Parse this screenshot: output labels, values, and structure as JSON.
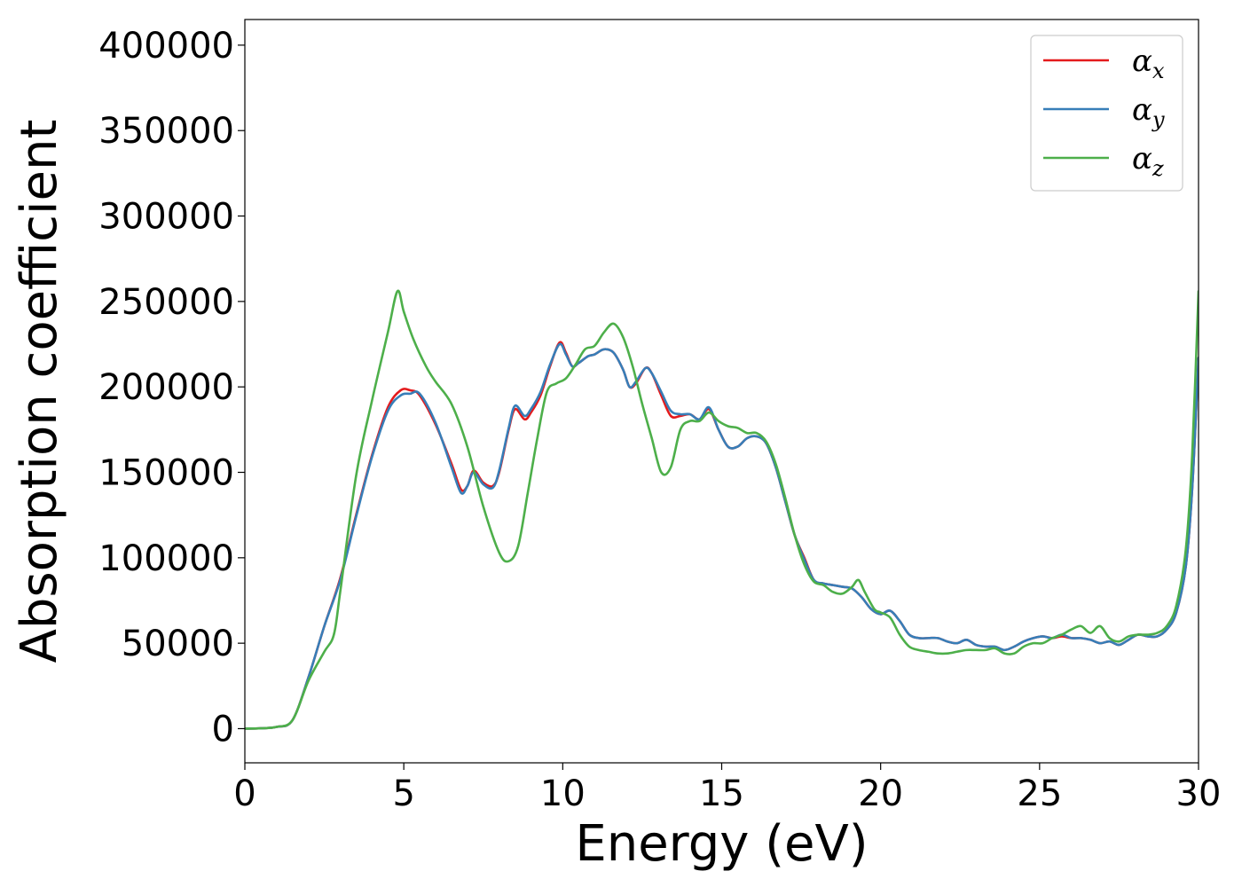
{
  "chart_data": {
    "type": "line",
    "title": "",
    "xlabel": "Energy (eV)",
    "ylabel": "Absorption coefficient",
    "xlim": [
      0,
      30
    ],
    "ylim": [
      -20000,
      415000
    ],
    "xticks": [
      0,
      5,
      10,
      15,
      20,
      25,
      30
    ],
    "xtick_labels": [
      "0",
      "5",
      "10",
      "15",
      "20",
      "25",
      "30"
    ],
    "yticks": [
      0,
      50000,
      100000,
      150000,
      200000,
      250000,
      300000,
      350000,
      400000
    ],
    "ytick_labels": [
      "0",
      "50000",
      "100000",
      "150000",
      "200000",
      "250000",
      "300000",
      "350000",
      "400000"
    ],
    "grid": false,
    "legend_position": "top-right",
    "series": [
      {
        "name": "α_x",
        "label_main": "α",
        "label_sub": "x",
        "color": "#e41a1c",
        "x": [
          0,
          0.5,
          1.0,
          1.5,
          2.0,
          2.5,
          3.0,
          3.5,
          4.0,
          4.5,
          4.9,
          5.2,
          5.5,
          6.0,
          6.5,
          6.8,
          7.0,
          7.2,
          7.5,
          7.8,
          8.0,
          8.3,
          8.5,
          8.8,
          9.0,
          9.3,
          9.6,
          9.9,
          10.1,
          10.3,
          10.5,
          10.8,
          11.0,
          11.3,
          11.6,
          11.9,
          12.1,
          12.3,
          12.6,
          12.8,
          13.1,
          13.4,
          13.7,
          14.0,
          14.3,
          14.6,
          14.9,
          15.2,
          15.5,
          15.8,
          16.1,
          16.4,
          16.7,
          17.0,
          17.3,
          17.6,
          17.9,
          18.2,
          18.5,
          18.8,
          19.1,
          19.4,
          19.7,
          20.0,
          20.3,
          20.6,
          20.9,
          21.2,
          21.5,
          21.8,
          22.1,
          22.4,
          22.7,
          23.0,
          23.3,
          23.6,
          23.9,
          24.2,
          24.5,
          24.8,
          25.1,
          25.4,
          25.7,
          26.0,
          26.3,
          26.6,
          26.9,
          27.2,
          27.5,
          27.8,
          28.1,
          28.4,
          28.7,
          29.0,
          29.3,
          29.6,
          29.8,
          30.0
        ],
        "y": [
          0,
          200,
          1000,
          5000,
          30000,
          60000,
          88000,
          125000,
          160000,
          188000,
          198000,
          198000,
          195000,
          178000,
          155000,
          140000,
          142000,
          151000,
          144000,
          142000,
          150000,
          175000,
          187000,
          181000,
          185000,
          195000,
          212000,
          226000,
          220000,
          212000,
          214000,
          218000,
          219000,
          222000,
          220000,
          210000,
          200000,
          202000,
          211000,
          208000,
          195000,
          183000,
          183000,
          184000,
          181000,
          187000,
          175000,
          165000,
          165000,
          170000,
          171000,
          167000,
          153000,
          133000,
          113000,
          100000,
          87000,
          85000,
          84000,
          83000,
          82000,
          77000,
          70000,
          67000,
          69000,
          63000,
          55000,
          53000,
          53000,
          53000,
          51000,
          50000,
          52000,
          49000,
          48000,
          48000,
          46000,
          48000,
          51000,
          53000,
          54000,
          53000,
          54000,
          53000,
          53000,
          52000,
          50000,
          51000,
          49000,
          52000,
          55000,
          54000,
          54000,
          58000,
          68000,
          95000,
          140000,
          217000
        ]
      },
      {
        "name": "α_y",
        "label_main": "α",
        "label_sub": "y",
        "color": "#377eb8",
        "x": [
          0,
          0.5,
          1.0,
          1.5,
          2.0,
          2.5,
          3.0,
          3.5,
          4.0,
          4.5,
          4.9,
          5.2,
          5.5,
          6.0,
          6.5,
          6.8,
          7.0,
          7.2,
          7.5,
          7.8,
          8.0,
          8.3,
          8.5,
          8.8,
          9.0,
          9.3,
          9.6,
          9.9,
          10.1,
          10.3,
          10.5,
          10.8,
          11.0,
          11.3,
          11.6,
          11.9,
          12.1,
          12.3,
          12.6,
          12.8,
          13.1,
          13.4,
          13.7,
          14.0,
          14.3,
          14.6,
          14.9,
          15.2,
          15.5,
          15.8,
          16.1,
          16.4,
          16.7,
          17.0,
          17.3,
          17.6,
          17.9,
          18.2,
          18.5,
          18.8,
          19.1,
          19.4,
          19.7,
          20.0,
          20.3,
          20.6,
          20.9,
          21.2,
          21.5,
          21.8,
          22.1,
          22.4,
          22.7,
          23.0,
          23.3,
          23.6,
          23.9,
          24.2,
          24.5,
          24.8,
          25.1,
          25.4,
          25.7,
          26.0,
          26.3,
          26.6,
          26.9,
          27.2,
          27.5,
          27.8,
          28.1,
          28.4,
          28.7,
          29.0,
          29.3,
          29.6,
          29.8,
          30.0
        ],
        "y": [
          0,
          200,
          1000,
          5000,
          30000,
          60000,
          87000,
          124000,
          159000,
          186000,
          195000,
          196000,
          196000,
          179000,
          153000,
          138000,
          142000,
          150000,
          143000,
          141000,
          151000,
          176000,
          189000,
          183000,
          187000,
          197000,
          213000,
          225000,
          219000,
          212000,
          214000,
          218000,
          219000,
          222000,
          220000,
          210000,
          200000,
          203000,
          211000,
          208000,
          197000,
          186000,
          184000,
          184000,
          181000,
          188000,
          175000,
          165000,
          165000,
          170000,
          171000,
          167000,
          153000,
          133000,
          113000,
          99000,
          87000,
          85000,
          84000,
          83000,
          82000,
          77000,
          70000,
          67000,
          69000,
          63000,
          55000,
          53000,
          53000,
          53000,
          51000,
          50000,
          52000,
          49000,
          48000,
          48000,
          46000,
          48000,
          51000,
          53000,
          54000,
          53000,
          55000,
          53000,
          53000,
          52000,
          50000,
          51000,
          49000,
          52000,
          55000,
          54000,
          54000,
          58000,
          68000,
          95000,
          140000,
          217000
        ]
      },
      {
        "name": "α_z",
        "label_main": "α",
        "label_sub": "z",
        "color": "#4daf4a",
        "x": [
          0,
          0.5,
          1.0,
          1.5,
          2.0,
          2.5,
          2.8,
          3.0,
          3.5,
          4.0,
          4.5,
          4.8,
          5.0,
          5.3,
          5.7,
          6.0,
          6.5,
          7.0,
          7.5,
          8.0,
          8.3,
          8.6,
          8.9,
          9.2,
          9.5,
          9.8,
          10.1,
          10.4,
          10.7,
          11.0,
          11.3,
          11.6,
          11.9,
          12.2,
          12.5,
          12.8,
          13.1,
          13.4,
          13.7,
          14.0,
          14.3,
          14.6,
          14.9,
          15.2,
          15.5,
          15.8,
          16.1,
          16.4,
          16.7,
          17.0,
          17.3,
          17.6,
          17.9,
          18.2,
          18.5,
          18.8,
          19.1,
          19.3,
          19.5,
          19.8,
          20.0,
          20.3,
          20.6,
          20.9,
          21.2,
          21.5,
          21.8,
          22.1,
          22.4,
          22.7,
          23.0,
          23.3,
          23.6,
          23.9,
          24.2,
          24.5,
          24.8,
          25.1,
          25.4,
          25.7,
          26.0,
          26.3,
          26.6,
          26.9,
          27.2,
          27.5,
          27.8,
          28.1,
          28.4,
          28.7,
          29.0,
          29.3,
          29.6,
          29.8,
          30.0
        ],
        "y": [
          0,
          200,
          1000,
          5000,
          28000,
          45000,
          55000,
          80000,
          148000,
          192000,
          232000,
          256000,
          244000,
          228000,
          212000,
          203000,
          190000,
          165000,
          130000,
          103000,
          98000,
          107000,
          138000,
          170000,
          197000,
          202000,
          205000,
          213000,
          222000,
          224000,
          232000,
          237000,
          229000,
          212000,
          190000,
          170000,
          150000,
          153000,
          175000,
          180000,
          180000,
          185000,
          180000,
          177000,
          176000,
          173000,
          173000,
          168000,
          155000,
          135000,
          113000,
          96000,
          86000,
          84000,
          80000,
          79000,
          83000,
          87000,
          80000,
          70000,
          68000,
          65000,
          55000,
          48000,
          46000,
          45000,
          44000,
          44000,
          45000,
          46000,
          46000,
          46000,
          47000,
          44000,
          44000,
          48000,
          50000,
          50000,
          53000,
          55000,
          58000,
          60000,
          56000,
          60000,
          53000,
          51000,
          54000,
          55000,
          55000,
          56000,
          60000,
          72000,
          105000,
          160000,
          256000
        ]
      }
    ]
  }
}
